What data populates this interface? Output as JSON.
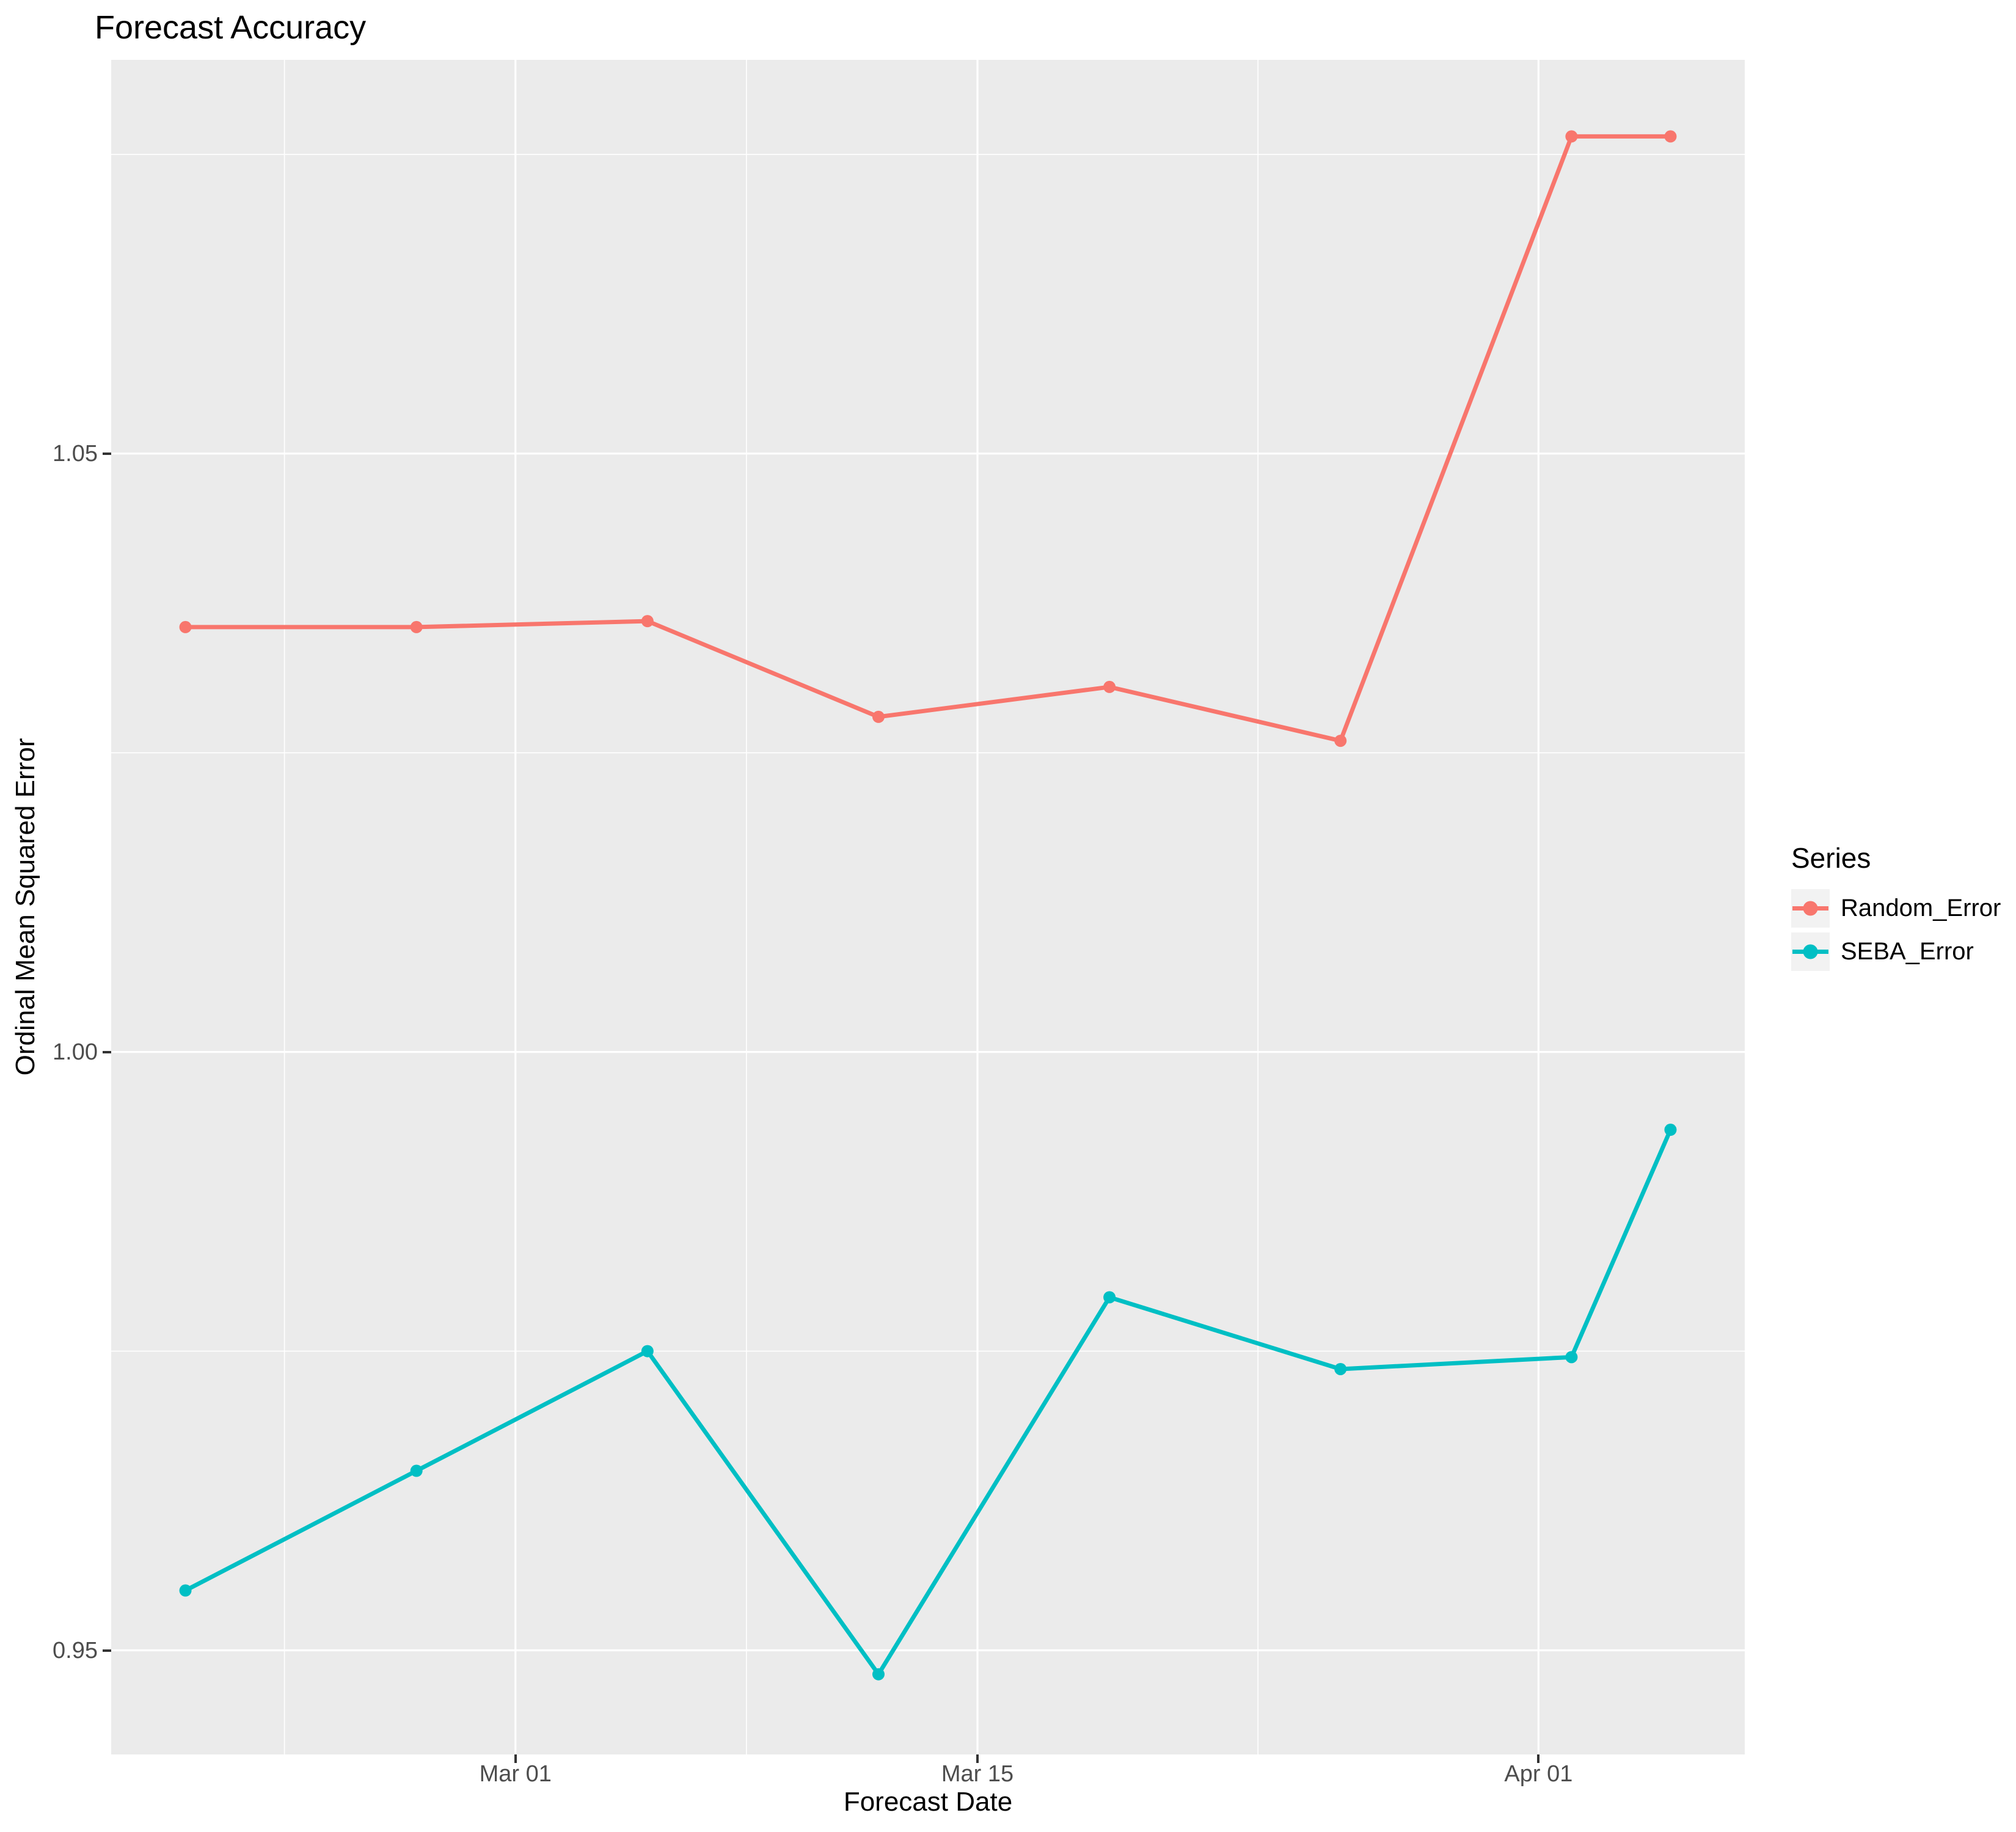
{
  "chart_data": {
    "type": "line",
    "title": "Forecast Accuracy",
    "xlabel": "Forecast Date",
    "ylabel": "Ordinal Mean Squared Error",
    "legend_title": "Series",
    "legend_position": "right",
    "panel_background": "#EBEBEB",
    "grid_color": "#FFFFFF",
    "tick_label_color": "#4D4D4D",
    "tick_mark_color": "#333333",
    "x_unit": "days relative to Mar 01",
    "x_domain": [
      -12.25,
      37.25
    ],
    "y_domain": [
      0.9413,
      1.0829
    ],
    "x_ticks": [
      {
        "label": "Mar 01",
        "day": 0
      },
      {
        "label": "Mar 15",
        "day": 14
      },
      {
        "label": "Apr 01",
        "day": 31
      }
    ],
    "x_minor_days": [
      -7,
      7,
      22.5
    ],
    "y_ticks": [
      {
        "label": "0.95",
        "value": 0.95
      },
      {
        "label": "1.00",
        "value": 1.0
      },
      {
        "label": "1.05",
        "value": 1.05
      }
    ],
    "y_minor_values": [
      0.975,
      1.025,
      1.075
    ],
    "point_dates": [
      "Feb 19",
      "Feb 26",
      "Mar 05",
      "Mar 12",
      "Mar 19",
      "Mar 26",
      "Apr 02",
      "Apr 05"
    ],
    "x_days": [
      -10,
      -3,
      4,
      11,
      18,
      25,
      32,
      35
    ],
    "series": [
      {
        "name": "Random_Error",
        "color": "#F8766D",
        "values": [
          1.0355,
          1.0355,
          1.036,
          1.028,
          1.0305,
          1.026,
          1.0765,
          1.0765
        ]
      },
      {
        "name": "SEBA_Error",
        "color": "#00BFC4",
        "values": [
          0.955,
          0.965,
          0.975,
          0.948,
          0.9795,
          0.9735,
          0.9745,
          0.9935
        ]
      }
    ]
  }
}
